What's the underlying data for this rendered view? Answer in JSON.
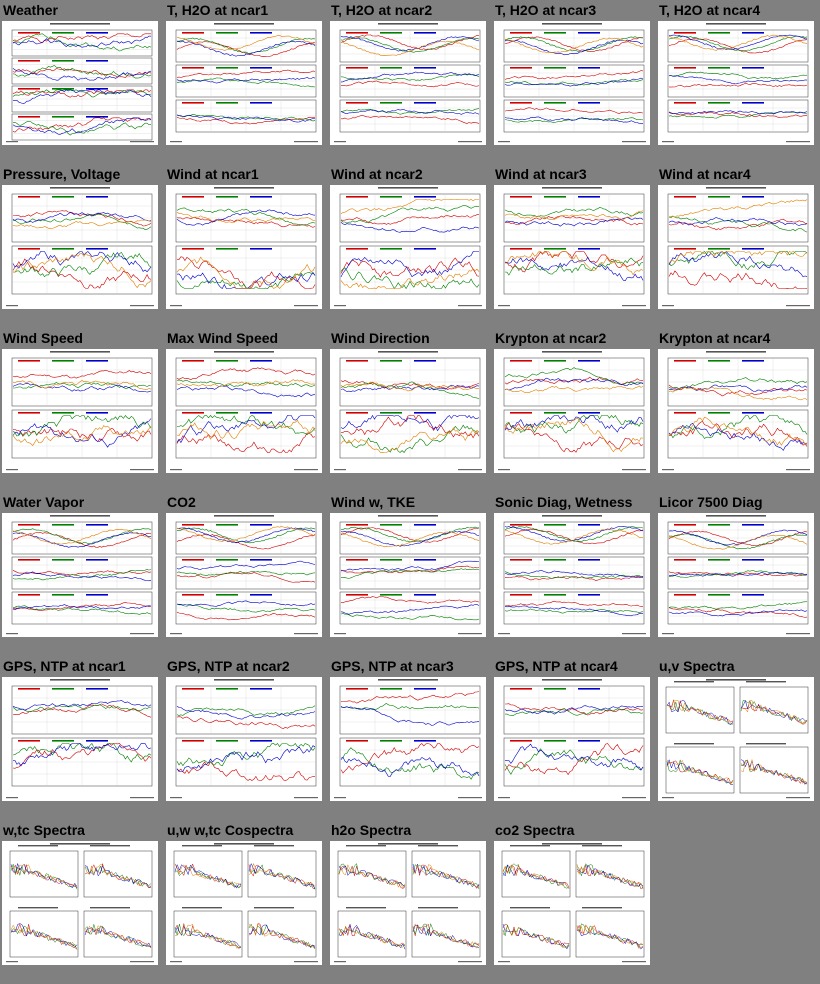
{
  "tiles": [
    {
      "title": "Weather",
      "kind": "multi4"
    },
    {
      "title": "T, H2O at ncar1",
      "kind": "triple"
    },
    {
      "title": "T, H2O at ncar2",
      "kind": "triple"
    },
    {
      "title": "T, H2O at ncar3",
      "kind": "triple"
    },
    {
      "title": "T, H2O at ncar4",
      "kind": "triple"
    },
    {
      "title": "Pressure, Voltage",
      "kind": "double"
    },
    {
      "title": "Wind at ncar1",
      "kind": "double"
    },
    {
      "title": "Wind at ncar2",
      "kind": "double"
    },
    {
      "title": "Wind at ncar3",
      "kind": "double"
    },
    {
      "title": "Wind at ncar4",
      "kind": "double"
    },
    {
      "title": "Wind Speed",
      "kind": "double"
    },
    {
      "title": "Max Wind Speed",
      "kind": "double"
    },
    {
      "title": "Wind Direction",
      "kind": "double"
    },
    {
      "title": "Krypton at ncar2",
      "kind": "double"
    },
    {
      "title": "Krypton at ncar4",
      "kind": "double"
    },
    {
      "title": "Water Vapor",
      "kind": "triple"
    },
    {
      "title": "CO2",
      "kind": "triple"
    },
    {
      "title": "Wind w, TKE",
      "kind": "triple"
    },
    {
      "title": "Sonic Diag, Wetness",
      "kind": "triple"
    },
    {
      "title": "Licor 7500 Diag",
      "kind": "triple"
    },
    {
      "title": "GPS, NTP at ncar1",
      "kind": "gps"
    },
    {
      "title": "GPS, NTP at ncar2",
      "kind": "gps"
    },
    {
      "title": "GPS, NTP at ncar3",
      "kind": "gps"
    },
    {
      "title": "GPS, NTP at ncar4",
      "kind": "gps"
    },
    {
      "title": "u,v Spectra",
      "kind": "spectra"
    },
    {
      "title": "w,tc Spectra",
      "kind": "spectra"
    },
    {
      "title": "u,w w,tc Cospectra",
      "kind": "spectra"
    },
    {
      "title": "h2o Spectra",
      "kind": "spectra"
    },
    {
      "title": "co2 Spectra",
      "kind": "spectra"
    }
  ],
  "colors": {
    "background": "#808080",
    "series": [
      "#d00000",
      "#008000",
      "#0000cc",
      "#e08000",
      "#8b0080",
      "#000000"
    ]
  }
}
